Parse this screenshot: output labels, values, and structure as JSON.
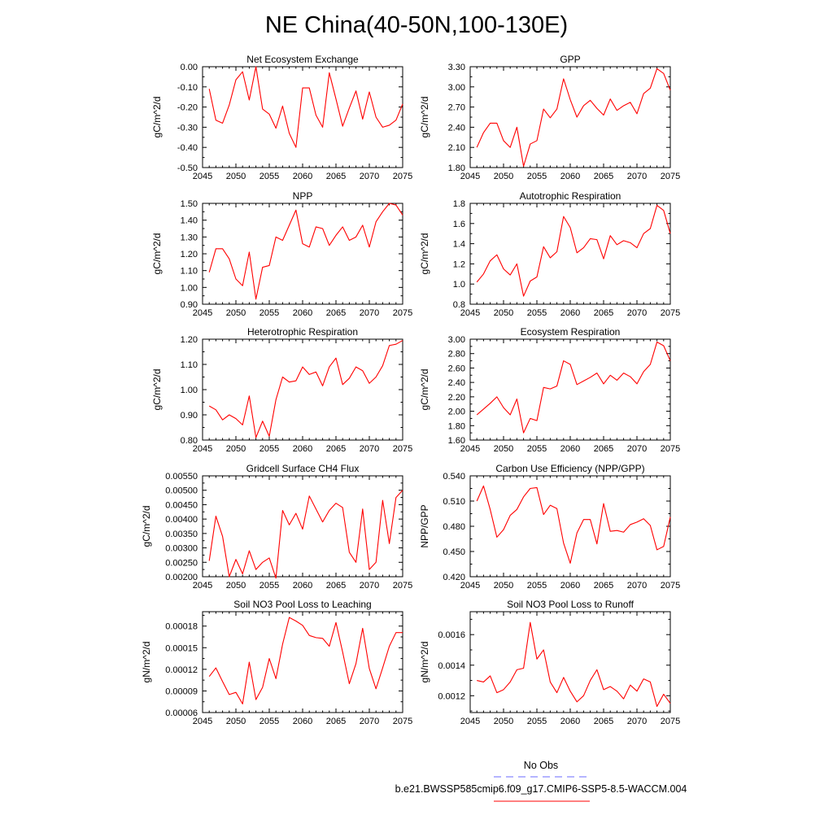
{
  "figure": {
    "title": "NE China(40-50N,100-130E)"
  },
  "legend": {
    "entries": [
      {
        "label": "No Obs",
        "color": "#6a6aff",
        "style": "dashed"
      },
      {
        "label": "b.e21.BWSSP585cmip6.f09_g17.CMIP6-SSP5-8.5-WACCM.004",
        "color": "#ff0000",
        "style": "solid"
      }
    ]
  },
  "chart_data": [
    {
      "type": "line",
      "title": "Net Ecosystem Exchange",
      "ylabel": "gC/m^2/d",
      "xlim": [
        2045,
        2075
      ],
      "ylim": [
        -0.5,
        0.0
      ],
      "xticks": [
        2045,
        2050,
        2055,
        2060,
        2065,
        2070,
        2075
      ],
      "yticks": [
        -0.5,
        -0.4,
        -0.3,
        -0.2,
        -0.1,
        0.0
      ],
      "ytick_labels": [
        "-0.50",
        "-0.40",
        "-0.30",
        "-0.20",
        "-0.10",
        "0.00"
      ],
      "x": [
        2046,
        2047,
        2048,
        2049,
        2050,
        2051,
        2052,
        2053,
        2054,
        2055,
        2056,
        2057,
        2058,
        2059,
        2060,
        2061,
        2062,
        2063,
        2064,
        2065,
        2066,
        2067,
        2068,
        2069,
        2070,
        2071,
        2072,
        2073,
        2074,
        2075
      ],
      "series": [
        {
          "color": "#ff0000",
          "values": [
            -0.11,
            -0.265,
            -0.28,
            -0.19,
            -0.065,
            -0.025,
            -0.165,
            0.0,
            -0.21,
            -0.235,
            -0.305,
            -0.195,
            -0.33,
            -0.4,
            -0.105,
            -0.105,
            -0.24,
            -0.3,
            -0.03,
            -0.16,
            -0.295,
            -0.205,
            -0.12,
            -0.26,
            -0.125,
            -0.25,
            -0.3,
            -0.29,
            -0.265,
            -0.185
          ]
        }
      ]
    },
    {
      "type": "line",
      "title": "GPP",
      "ylabel": "gC/m^2/d",
      "xlim": [
        2045,
        2075
      ],
      "ylim": [
        1.8,
        3.3
      ],
      "xticks": [
        2045,
        2050,
        2055,
        2060,
        2065,
        2070,
        2075
      ],
      "yticks": [
        1.8,
        2.1,
        2.4,
        2.7,
        3.0,
        3.3
      ],
      "ytick_labels": [
        "1.80",
        "2.10",
        "2.40",
        "2.70",
        "3.00",
        "3.30"
      ],
      "x": [
        2046,
        2047,
        2048,
        2049,
        2050,
        2051,
        2052,
        2053,
        2054,
        2055,
        2056,
        2057,
        2058,
        2059,
        2060,
        2061,
        2062,
        2063,
        2064,
        2065,
        2066,
        2067,
        2068,
        2069,
        2070,
        2071,
        2072,
        2073,
        2074,
        2075
      ],
      "series": [
        {
          "color": "#ff0000",
          "values": [
            2.1,
            2.32,
            2.46,
            2.46,
            2.2,
            2.1,
            2.4,
            1.82,
            2.15,
            2.2,
            2.67,
            2.54,
            2.67,
            3.12,
            2.81,
            2.55,
            2.72,
            2.8,
            2.68,
            2.58,
            2.82,
            2.65,
            2.72,
            2.77,
            2.6,
            2.9,
            2.98,
            3.27,
            3.2,
            2.95
          ]
        }
      ]
    },
    {
      "type": "line",
      "title": "NPP",
      "ylabel": "gC/m^2/d",
      "xlim": [
        2045,
        2075
      ],
      "ylim": [
        0.9,
        1.5
      ],
      "xticks": [
        2045,
        2050,
        2055,
        2060,
        2065,
        2070,
        2075
      ],
      "yticks": [
        0.9,
        1.0,
        1.1,
        1.2,
        1.3,
        1.4,
        1.5
      ],
      "ytick_labels": [
        "0.90",
        "1.00",
        "1.10",
        "1.20",
        "1.30",
        "1.40",
        "1.50"
      ],
      "x": [
        2046,
        2047,
        2048,
        2049,
        2050,
        2051,
        2052,
        2053,
        2054,
        2055,
        2056,
        2057,
        2058,
        2059,
        2060,
        2061,
        2062,
        2063,
        2064,
        2065,
        2066,
        2067,
        2068,
        2069,
        2070,
        2071,
        2072,
        2073,
        2074,
        2075
      ],
      "series": [
        {
          "color": "#ff0000",
          "values": [
            1.09,
            1.23,
            1.23,
            1.17,
            1.05,
            1.01,
            1.21,
            0.93,
            1.12,
            1.13,
            1.3,
            1.28,
            1.37,
            1.46,
            1.26,
            1.24,
            1.36,
            1.35,
            1.25,
            1.31,
            1.36,
            1.28,
            1.3,
            1.37,
            1.24,
            1.39,
            1.45,
            1.5,
            1.49,
            1.43
          ]
        }
      ]
    },
    {
      "type": "line",
      "title": "Autotrophic Respiration",
      "ylabel": "gC/m^2/d",
      "xlim": [
        2045,
        2075
      ],
      "ylim": [
        0.8,
        1.8
      ],
      "xticks": [
        2045,
        2050,
        2055,
        2060,
        2065,
        2070,
        2075
      ],
      "yticks": [
        0.8,
        1.0,
        1.2,
        1.4,
        1.6,
        1.8
      ],
      "ytick_labels": [
        "0.8",
        "1.0",
        "1.2",
        "1.4",
        "1.6",
        "1.8"
      ],
      "x": [
        2046,
        2047,
        2048,
        2049,
        2050,
        2051,
        2052,
        2053,
        2054,
        2055,
        2056,
        2057,
        2058,
        2059,
        2060,
        2061,
        2062,
        2063,
        2064,
        2065,
        2066,
        2067,
        2068,
        2069,
        2070,
        2071,
        2072,
        2073,
        2074,
        2075
      ],
      "series": [
        {
          "color": "#ff0000",
          "values": [
            1.02,
            1.1,
            1.23,
            1.29,
            1.15,
            1.09,
            1.2,
            0.88,
            1.03,
            1.07,
            1.37,
            1.26,
            1.32,
            1.67,
            1.56,
            1.31,
            1.36,
            1.45,
            1.44,
            1.25,
            1.48,
            1.39,
            1.43,
            1.41,
            1.36,
            1.5,
            1.55,
            1.78,
            1.73,
            1.5
          ]
        }
      ]
    },
    {
      "type": "line",
      "title": "Heterotrophic Respiration",
      "ylabel": "gC/m^2/d",
      "xlim": [
        2045,
        2075
      ],
      "ylim": [
        0.8,
        1.2
      ],
      "xticks": [
        2045,
        2050,
        2055,
        2060,
        2065,
        2070,
        2075
      ],
      "yticks": [
        0.8,
        0.9,
        1.0,
        1.1,
        1.2
      ],
      "ytick_labels": [
        "0.80",
        "0.90",
        "1.00",
        "1.10",
        "1.20"
      ],
      "x": [
        2046,
        2047,
        2048,
        2049,
        2050,
        2051,
        2052,
        2053,
        2054,
        2055,
        2056,
        2057,
        2058,
        2059,
        2060,
        2061,
        2062,
        2063,
        2064,
        2065,
        2066,
        2067,
        2068,
        2069,
        2070,
        2071,
        2072,
        2073,
        2074,
        2075
      ],
      "series": [
        {
          "color": "#ff0000",
          "values": [
            0.935,
            0.92,
            0.88,
            0.9,
            0.885,
            0.86,
            0.975,
            0.81,
            0.875,
            0.815,
            0.96,
            1.05,
            1.03,
            1.035,
            1.09,
            1.06,
            1.07,
            1.015,
            1.09,
            1.125,
            1.02,
            1.045,
            1.09,
            1.075,
            1.025,
            1.05,
            1.095,
            1.175,
            1.18,
            1.195
          ]
        }
      ]
    },
    {
      "type": "line",
      "title": "Ecosystem Respiration",
      "ylabel": "gC/m^2/d",
      "xlim": [
        2045,
        2075
      ],
      "ylim": [
        1.6,
        3.0
      ],
      "xticks": [
        2045,
        2050,
        2055,
        2060,
        2065,
        2070,
        2075
      ],
      "yticks": [
        1.6,
        1.8,
        2.0,
        2.2,
        2.4,
        2.6,
        2.8,
        3.0
      ],
      "ytick_labels": [
        "1.60",
        "1.80",
        "2.00",
        "2.20",
        "2.40",
        "2.60",
        "2.80",
        "3.00"
      ],
      "x": [
        2046,
        2047,
        2048,
        2049,
        2050,
        2051,
        2052,
        2053,
        2054,
        2055,
        2056,
        2057,
        2058,
        2059,
        2060,
        2061,
        2062,
        2063,
        2064,
        2065,
        2066,
        2067,
        2068,
        2069,
        2070,
        2071,
        2072,
        2073,
        2074,
        2075
      ],
      "series": [
        {
          "color": "#ff0000",
          "values": [
            1.95,
            2.03,
            2.11,
            2.2,
            2.05,
            1.95,
            2.17,
            1.7,
            1.9,
            1.87,
            2.33,
            2.31,
            2.35,
            2.7,
            2.65,
            2.37,
            2.42,
            2.47,
            2.53,
            2.38,
            2.5,
            2.43,
            2.53,
            2.48,
            2.38,
            2.55,
            2.65,
            2.96,
            2.91,
            2.7
          ]
        }
      ]
    },
    {
      "type": "line",
      "title": "Gridcell Surface CH4 Flux",
      "ylabel": "gC/m^2/d",
      "xlim": [
        2045,
        2075
      ],
      "ylim": [
        0.002,
        0.0055
      ],
      "xticks": [
        2045,
        2050,
        2055,
        2060,
        2065,
        2070,
        2075
      ],
      "yticks": [
        0.002,
        0.0025,
        0.003,
        0.0035,
        0.004,
        0.0045,
        0.005,
        0.0055
      ],
      "ytick_labels": [
        "0.00200",
        "0.00250",
        "0.00300",
        "0.00350",
        "0.00400",
        "0.00450",
        "0.00500",
        "0.00550"
      ],
      "x": [
        2046,
        2047,
        2048,
        2049,
        2050,
        2051,
        2052,
        2053,
        2054,
        2055,
        2056,
        2057,
        2058,
        2059,
        2060,
        2061,
        2062,
        2063,
        2064,
        2065,
        2066,
        2067,
        2068,
        2069,
        2070,
        2071,
        2072,
        2073,
        2074,
        2075
      ],
      "series": [
        {
          "color": "#ff0000",
          "values": [
            0.00255,
            0.0041,
            0.0034,
            0.002,
            0.0026,
            0.0021,
            0.0029,
            0.00225,
            0.0025,
            0.00265,
            0.00195,
            0.0043,
            0.0038,
            0.0042,
            0.00365,
            0.0048,
            0.00435,
            0.0039,
            0.0043,
            0.00455,
            0.0044,
            0.00285,
            0.0025,
            0.00435,
            0.00225,
            0.0025,
            0.00465,
            0.00315,
            0.00475,
            0.005
          ]
        }
      ]
    },
    {
      "type": "line",
      "title": "Carbon Use Efficiency (NPP/GPP)",
      "ylabel": "NPP/GPP",
      "xlim": [
        2045,
        2075
      ],
      "ylim": [
        0.42,
        0.54
      ],
      "xticks": [
        2045,
        2050,
        2055,
        2060,
        2065,
        2070,
        2075
      ],
      "yticks": [
        0.42,
        0.45,
        0.48,
        0.51,
        0.54
      ],
      "ytick_labels": [
        "0.420",
        "0.450",
        "0.480",
        "0.510",
        "0.540"
      ],
      "x": [
        2046,
        2047,
        2048,
        2049,
        2050,
        2051,
        2052,
        2053,
        2054,
        2055,
        2056,
        2057,
        2058,
        2059,
        2060,
        2061,
        2062,
        2063,
        2064,
        2065,
        2066,
        2067,
        2068,
        2069,
        2070,
        2071,
        2072,
        2073,
        2074,
        2075
      ],
      "series": [
        {
          "color": "#ff0000",
          "values": [
            0.51,
            0.528,
            0.5,
            0.467,
            0.476,
            0.493,
            0.5,
            0.515,
            0.525,
            0.526,
            0.494,
            0.505,
            0.501,
            0.46,
            0.436,
            0.472,
            0.488,
            0.488,
            0.459,
            0.507,
            0.474,
            0.475,
            0.473,
            0.482,
            0.485,
            0.489,
            0.481,
            0.452,
            0.456,
            0.491
          ]
        }
      ]
    },
    {
      "type": "line",
      "title": "Soil NO3 Pool Loss to Leaching",
      "ylabel": "gN/m^2/d",
      "xlim": [
        2045,
        2075
      ],
      "ylim": [
        6e-05,
        0.0002
      ],
      "xticks": [
        2045,
        2050,
        2055,
        2060,
        2065,
        2070,
        2075
      ],
      "yticks": [
        6e-05,
        9e-05,
        0.00012,
        0.00015,
        0.00018
      ],
      "ytick_labels": [
        "0.00006",
        "0.00009",
        "0.00012",
        "0.00015",
        "0.00018"
      ],
      "x": [
        2046,
        2047,
        2048,
        2049,
        2050,
        2051,
        2052,
        2053,
        2054,
        2055,
        2056,
        2057,
        2058,
        2059,
        2060,
        2061,
        2062,
        2063,
        2064,
        2065,
        2066,
        2067,
        2068,
        2069,
        2070,
        2071,
        2072,
        2073,
        2074,
        2075
      ],
      "series": [
        {
          "color": "#ff0000",
          "values": [
            0.00011,
            0.000122,
            0.000103,
            8.5e-05,
            8.8e-05,
            7.2e-05,
            0.00013,
            7.8e-05,
            9.5e-05,
            0.000135,
            0.000107,
            0.000155,
            0.000192,
            0.000187,
            0.000181,
            0.000167,
            0.000164,
            0.000163,
            0.000152,
            0.000185,
            0.000144,
            0.0001,
            0.000128,
            0.000177,
            0.000121,
            9.3e-05,
            0.000122,
            0.000152,
            0.000171,
            0.000171
          ]
        }
      ]
    },
    {
      "type": "line",
      "title": "Soil NO3 Pool Loss to Runoff",
      "ylabel": "gN/m^2/d",
      "xlim": [
        2045,
        2075
      ],
      "ylim": [
        0.00109,
        0.00175
      ],
      "xticks": [
        2045,
        2050,
        2055,
        2060,
        2065,
        2070,
        2075
      ],
      "yticks": [
        0.0012,
        0.0014,
        0.0016
      ],
      "ytick_labels": [
        "0.0012",
        "0.0014",
        "0.0016"
      ],
      "x": [
        2046,
        2047,
        2048,
        2049,
        2050,
        2051,
        2052,
        2053,
        2054,
        2055,
        2056,
        2057,
        2058,
        2059,
        2060,
        2061,
        2062,
        2063,
        2064,
        2065,
        2066,
        2067,
        2068,
        2069,
        2070,
        2071,
        2072,
        2073,
        2074,
        2075
      ],
      "series": [
        {
          "color": "#ff0000",
          "values": [
            0.0013,
            0.00129,
            0.00133,
            0.00122,
            0.00124,
            0.00129,
            0.00137,
            0.00138,
            0.00168,
            0.00144,
            0.0015,
            0.00129,
            0.00122,
            0.00132,
            0.00123,
            0.00116,
            0.0012,
            0.0013,
            0.00137,
            0.00124,
            0.00126,
            0.00123,
            0.00118,
            0.00127,
            0.00123,
            0.00131,
            0.00129,
            0.00113,
            0.00121,
            0.00115
          ]
        }
      ]
    }
  ]
}
